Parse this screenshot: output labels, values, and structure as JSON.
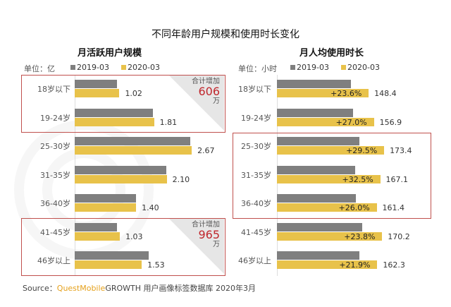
{
  "title": "不同年龄用户规模和使用时长变化",
  "source": {
    "prefix": "Source：",
    "brand": "QuestMobile",
    "text": "GROWTH 用户画像标签数据库 2020年3月"
  },
  "watermark": "QUESTMOBILE",
  "colors": {
    "s2019": "#7f7f7f",
    "s2020": "#e8c24a",
    "highlight": "#c0504d"
  },
  "chart_data": [
    {
      "type": "bar",
      "title": "月活跃用户规模",
      "unit": "单位：亿",
      "legend": [
        "2019-03",
        "2020-03"
      ],
      "categories": [
        "18岁以下",
        "19-24岁",
        "25-30岁",
        "31-35岁",
        "36-40岁",
        "41-45岁",
        "46岁以上"
      ],
      "series": [
        {
          "name": "2019-03",
          "values": [
            0.97,
            1.78,
            2.63,
            2.09,
            1.4,
            0.96,
            1.69
          ]
        },
        {
          "name": "2020-03",
          "values": [
            1.02,
            1.81,
            2.67,
            2.1,
            1.4,
            1.03,
            1.53
          ]
        }
      ],
      "labels": [
        "1.02",
        "1.81",
        "2.67",
        "2.10",
        "1.40",
        "1.03",
        "1.53"
      ],
      "annotations": [
        {
          "label": "合计增加",
          "value": "606",
          "unit": "万"
        },
        {
          "label": "合计增加",
          "value": "965",
          "unit": "万"
        }
      ],
      "xlim": [
        0,
        3
      ]
    },
    {
      "type": "bar",
      "title": "月人均使用时长",
      "unit": "单位：小时",
      "legend": [
        "2019-03",
        "2020-03"
      ],
      "categories": [
        "18岁以下",
        "19-24岁",
        "25-30岁",
        "31-35岁",
        "36-40岁",
        "41-45岁",
        "46岁以上"
      ],
      "series": [
        {
          "name": "2019-03",
          "values": [
            120.1,
            123.5,
            133.9,
            126.1,
            128.1,
            137.5,
            133.1
          ]
        },
        {
          "name": "2020-03",
          "values": [
            148.4,
            156.9,
            173.4,
            167.1,
            161.4,
            170.2,
            162.3
          ]
        }
      ],
      "labels": [
        "148.4",
        "156.9",
        "173.4",
        "167.1",
        "161.4",
        "170.2",
        "162.3"
      ],
      "growth": [
        "+23.6%",
        "+27.0%",
        "+29.5%",
        "+32.5%",
        "+26.0%",
        "+23.8%",
        "+21.9%"
      ],
      "xlim": [
        0,
        200
      ]
    }
  ]
}
